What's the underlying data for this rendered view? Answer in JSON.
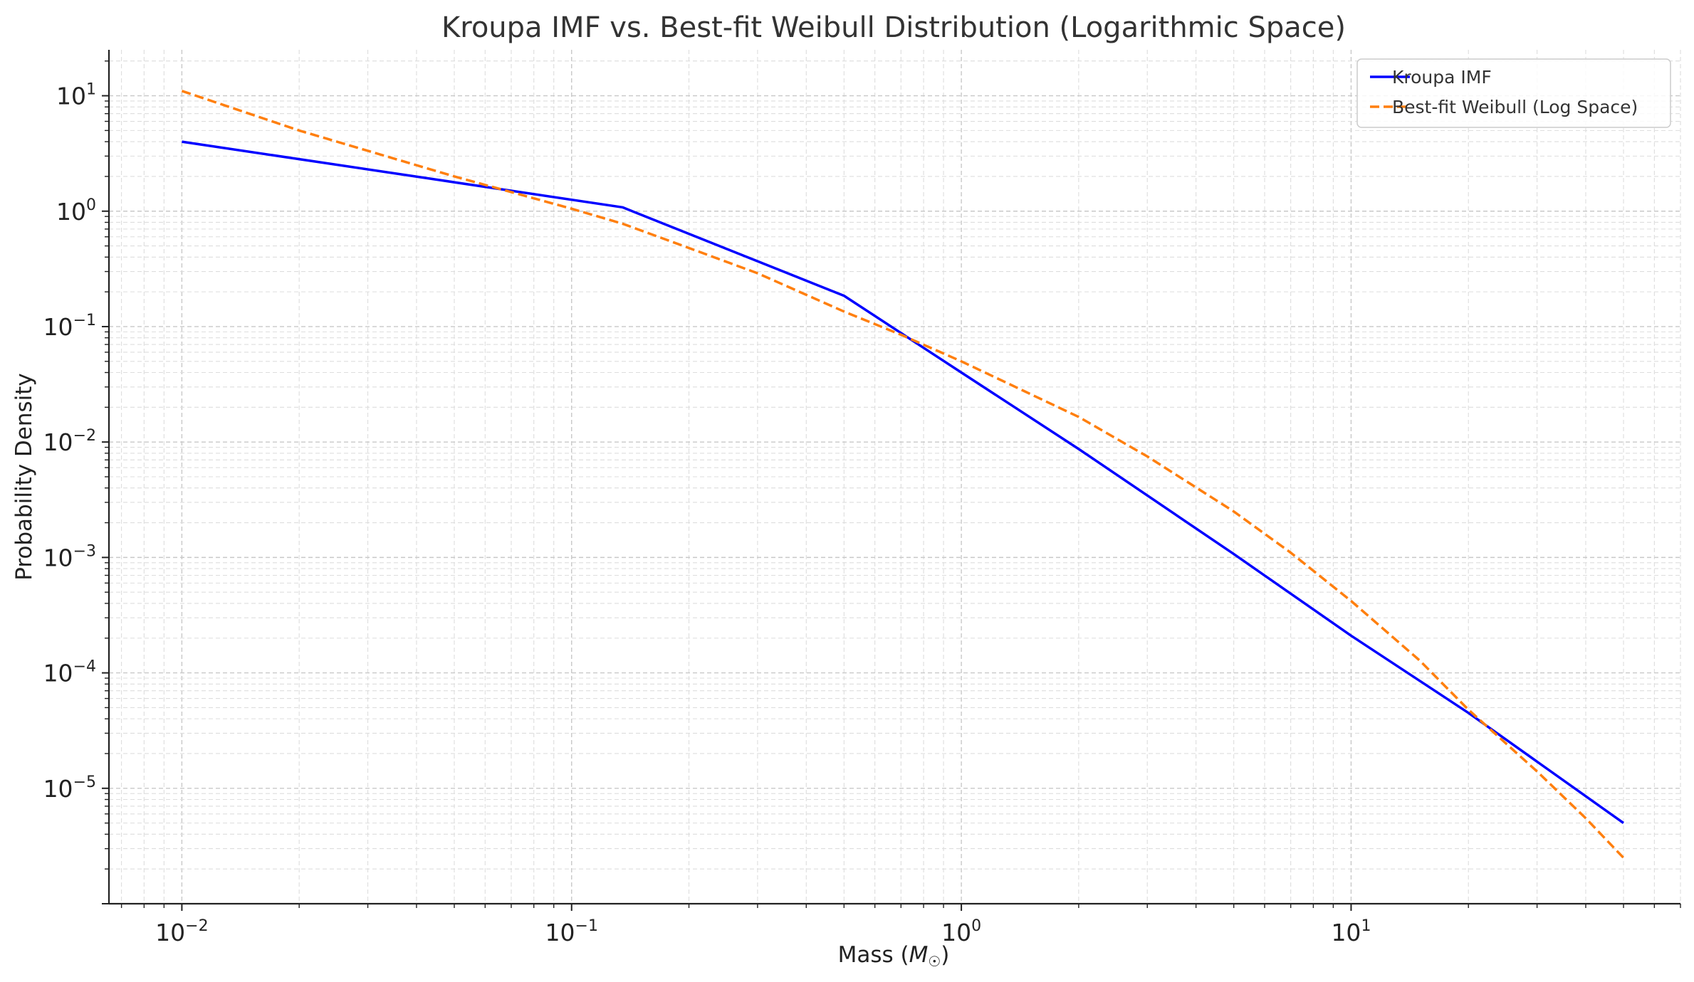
{
  "chart_data": {
    "type": "line",
    "title": "Kroupa IMF vs. Best-fit Weibull Distribution (Logarithmic Space)",
    "xlabel": "Mass (M☉)",
    "xlabel_base": "Mass (",
    "xlabel_symbol": "M",
    "xlabel_subscript": "☉",
    "xlabel_close": ")",
    "ylabel": "Probability Density",
    "xscale": "log",
    "yscale": "log",
    "xlim": [
      0.0065,
      70
    ],
    "ylim": [
      1e-06,
      25
    ],
    "grid": true,
    "legend_position": "top-right",
    "x_ticks": [
      {
        "base": "10",
        "exp": "−2",
        "value": 0.01
      },
      {
        "base": "10",
        "exp": "−1",
        "value": 0.1
      },
      {
        "base": "10",
        "exp": "0",
        "value": 1
      },
      {
        "base": "10",
        "exp": "1",
        "value": 10
      }
    ],
    "y_ticks": [
      {
        "base": "10",
        "exp": "1",
        "value": 10
      },
      {
        "base": "10",
        "exp": "0",
        "value": 1
      },
      {
        "base": "10",
        "exp": "−1",
        "value": 0.1
      },
      {
        "base": "10",
        "exp": "−2",
        "value": 0.01
      },
      {
        "base": "10",
        "exp": "−3",
        "value": 0.001
      },
      {
        "base": "10",
        "exp": "−4",
        "value": 0.0001
      },
      {
        "base": "10",
        "exp": "−5",
        "value": 1e-05
      }
    ],
    "series": [
      {
        "name": "Kroupa IMF",
        "color": "#0000ff",
        "style": "solid",
        "x": [
          0.01,
          0.135,
          0.5,
          1.0,
          2.0,
          5.0,
          10.0,
          20.0,
          50.0
        ],
        "y": [
          4.0,
          1.08,
          0.185,
          0.04,
          0.0087,
          0.00107,
          0.00021,
          4.5e-05,
          5e-06
        ]
      },
      {
        "name": "Best-fit Weibull (Log Space)",
        "color": "#ff7f0e",
        "style": "dashed",
        "x": [
          0.01,
          0.02,
          0.05,
          0.1,
          0.135,
          0.2,
          0.3,
          0.5,
          0.7,
          1.0,
          2.0,
          3.0,
          5.0,
          7.0,
          10.0,
          15.0,
          20.0,
          30.0,
          40.0,
          50.0
        ],
        "y": [
          11.0,
          5.0,
          2.0,
          1.05,
          0.78,
          0.48,
          0.29,
          0.135,
          0.085,
          0.05,
          0.0165,
          0.0075,
          0.0025,
          0.0011,
          0.00042,
          0.000128,
          4.8e-05,
          1.4e-05,
          5.5e-06,
          2.5e-06
        ]
      }
    ]
  }
}
